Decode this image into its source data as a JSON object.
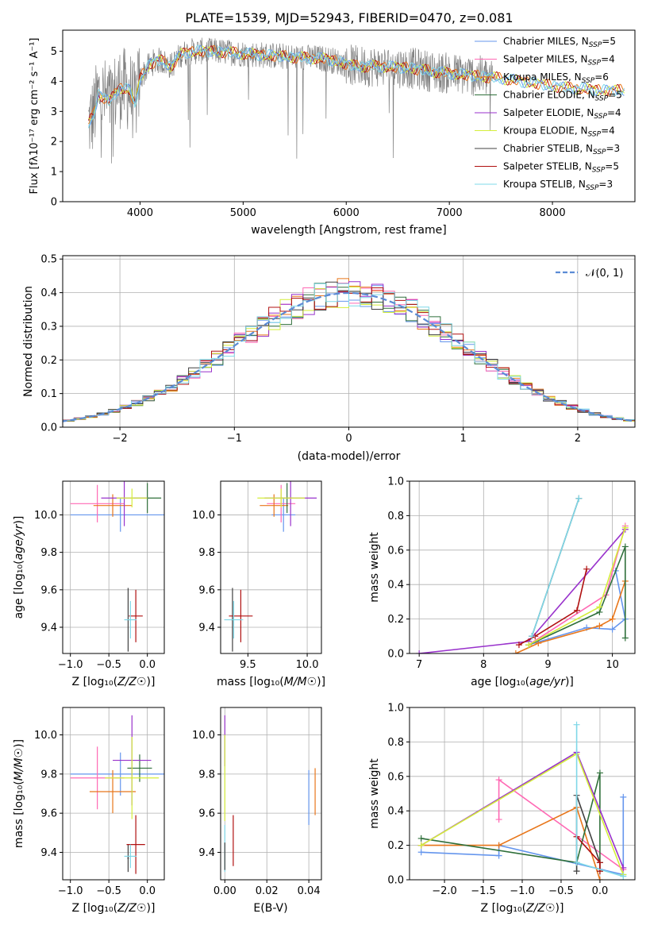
{
  "title": "PLATE=1539, MJD=52943, FIBERID=0470, z=0.081",
  "colors": {
    "chabrier_miles": "#6495ed",
    "salpeter_miles": "#ff69b4",
    "kroupa_miles": "#e8761a",
    "chabrier_elodie": "#2f6f3a",
    "salpeter_elodie": "#9932cc",
    "kroupa_elodie": "#d4ee3a",
    "chabrier_stelib": "#404040",
    "salpeter_stelib": "#b01010",
    "kroupa_stelib": "#7fd8e8",
    "data": "#808080"
  },
  "chart_data": [
    {
      "type": "line",
      "xlabel": "wavelength [Angstrom, rest frame]",
      "ylabel": "Flux [f_λ 10^-17 erg cm^-2 s^-1 A^-1]",
      "xlim": [
        3250,
        8800
      ],
      "ylim": [
        0,
        5.7
      ],
      "xticks": [
        4000,
        5000,
        6000,
        7000,
        8000
      ],
      "yticks": [
        0,
        1,
        2,
        3,
        4,
        5
      ],
      "legend_position": "top-right",
      "legend": [
        {
          "text": "Chabrier MILES, N",
          "sub": "SSP",
          "eq": "=5",
          "color": "#6495ed"
        },
        {
          "text": "Salpeter MILES, N",
          "sub": "SSP",
          "eq": "=4",
          "color": "#ff69b4"
        },
        {
          "text": "Kroupa MILES, N",
          "sub": "SSP",
          "eq": "=6",
          "color": "#e8761a"
        },
        {
          "text": "Chabrier ELODIE, N",
          "sub": "SSP",
          "eq": "=5",
          "color": "#2f6f3a"
        },
        {
          "text": "Salpeter ELODIE, N",
          "sub": "SSP",
          "eq": "=4",
          "color": "#9932cc"
        },
        {
          "text": "Kroupa ELODIE, N",
          "sub": "SSP",
          "eq": "=4",
          "color": "#d4ee3a"
        },
        {
          "text": "Chabrier STELIB, N",
          "sub": "SSP",
          "eq": "=3",
          "color": "#404040"
        },
        {
          "text": "Salpeter STELIB, N",
          "sub": "SSP",
          "eq": "=5",
          "color": "#b01010"
        },
        {
          "text": "Kroupa STELIB, N",
          "sub": "SSP",
          "eq": "=3",
          "color": "#7fd8e8"
        }
      ],
      "spectrum_knots": [
        [
          3500,
          2.6
        ],
        [
          3550,
          2.9
        ],
        [
          3600,
          3.6
        ],
        [
          3700,
          3.3
        ],
        [
          3800,
          3.8
        ],
        [
          3900,
          3.7
        ],
        [
          3950,
          3.2
        ],
        [
          4000,
          4.1
        ],
        [
          4100,
          4.6
        ],
        [
          4200,
          4.7
        ],
        [
          4300,
          4.5
        ],
        [
          4400,
          4.9
        ],
        [
          4500,
          5.0
        ],
        [
          4700,
          5.0
        ],
        [
          4900,
          4.95
        ],
        [
          5100,
          4.9
        ],
        [
          5300,
          4.85
        ],
        [
          5500,
          4.8
        ],
        [
          5800,
          4.75
        ],
        [
          6100,
          4.5
        ],
        [
          6300,
          4.5
        ],
        [
          6600,
          4.45
        ],
        [
          6900,
          4.3
        ],
        [
          7200,
          4.2
        ],
        [
          7500,
          4.1
        ],
        [
          7700,
          4.0
        ],
        [
          7900,
          3.9
        ],
        [
          8100,
          3.8
        ],
        [
          8300,
          3.75
        ],
        [
          8500,
          3.7
        ]
      ]
    },
    {
      "type": "line",
      "xlabel": "(data-model)/error",
      "ylabel": "Normed distribution",
      "xlim": [
        -2.5,
        2.5
      ],
      "ylim": [
        0,
        0.51
      ],
      "xticks": [
        -2,
        -1,
        0,
        1,
        2
      ],
      "yticks": [
        0.0,
        0.1,
        0.2,
        0.3,
        0.4,
        0.5
      ],
      "legend_position": "top-right",
      "legend_label": "𝒩(0, 1)",
      "histogram_bin_width": 0.1
    },
    {
      "type": "scatter",
      "xlabel": "Z [log10(Z/Z☉)]",
      "ylabel": "age [log10(age/yr)]",
      "xlim": [
        -1.1,
        0.22
      ],
      "ylim": [
        9.26,
        10.18
      ],
      "xticks": [
        -1.0,
        -0.5,
        0.0
      ],
      "yticks": [
        9.4,
        9.6,
        9.8,
        10.0
      ],
      "points": [
        {
          "model": "chabrier_miles",
          "x": -0.35,
          "xerr": 0.65,
          "y": 10.0,
          "yerr": 0.09
        },
        {
          "model": "salpeter_miles",
          "x": -0.65,
          "xerr": 0.35,
          "y": 10.06,
          "yerr": 0.1
        },
        {
          "model": "kroupa_miles",
          "x": -0.45,
          "xerr": 0.25,
          "y": 10.05,
          "yerr": 0.06
        },
        {
          "model": "chabrier_elodie",
          "x": 0.0,
          "xerr": 0.18,
          "y": 10.09,
          "yerr": 0.08
        },
        {
          "model": "salpeter_elodie",
          "x": -0.3,
          "xerr": 0.3,
          "y": 10.09,
          "yerr": 0.15
        },
        {
          "model": "kroupa_elodie",
          "x": -0.2,
          "xerr": 0.2,
          "y": 10.09,
          "yerr": 0.05
        },
        {
          "model": "chabrier_stelib",
          "x": -0.25,
          "xerr": 0.01,
          "y": 9.44,
          "yerr": 0.17
        },
        {
          "model": "salpeter_stelib",
          "x": -0.15,
          "xerr": 0.09,
          "y": 9.46,
          "yerr": 0.14
        },
        {
          "model": "kroupa_stelib",
          "x": -0.22,
          "xerr": 0.08,
          "y": 9.44,
          "yerr": 0.1
        }
      ]
    },
    {
      "type": "scatter",
      "xlabel": "mass [log10(M/M☉)]",
      "ylabel": "",
      "xlim": [
        9.27,
        10.12
      ],
      "ylim": [
        9.26,
        10.18
      ],
      "xticks": [
        9.5,
        10.0
      ],
      "yticks": [
        9.4,
        9.6,
        9.8,
        10.0
      ],
      "points": [
        {
          "model": "chabrier_miles",
          "x": 9.8,
          "xerr": 0.1,
          "y": 10.0,
          "yerr": 0.09
        },
        {
          "model": "salpeter_miles",
          "x": 9.78,
          "xerr": 0.12,
          "y": 10.06,
          "yerr": 0.1
        },
        {
          "model": "kroupa_miles",
          "x": 9.72,
          "xerr": 0.12,
          "y": 10.05,
          "yerr": 0.06
        },
        {
          "model": "chabrier_elodie",
          "x": 9.83,
          "xerr": 0.05,
          "y": 10.09,
          "yerr": 0.08
        },
        {
          "model": "salpeter_elodie",
          "x": 9.86,
          "xerr": 0.22,
          "y": 10.09,
          "yerr": 0.15
        },
        {
          "model": "kroupa_elodie",
          "x": 9.78,
          "xerr": 0.2,
          "y": 10.09,
          "yerr": 0.05
        },
        {
          "model": "chabrier_stelib",
          "x": 9.37,
          "xerr": 0.01,
          "y": 9.44,
          "yerr": 0.17
        },
        {
          "model": "salpeter_stelib",
          "x": 9.44,
          "xerr": 0.1,
          "y": 9.46,
          "yerr": 0.14
        },
        {
          "model": "kroupa_stelib",
          "x": 9.38,
          "xerr": 0.08,
          "y": 9.44,
          "yerr": 0.1
        }
      ]
    },
    {
      "type": "line",
      "xlabel": "age [log10(age/yr)]",
      "ylabel": "mass weight",
      "xlim": [
        6.85,
        10.35
      ],
      "ylim": [
        0,
        1.0
      ],
      "xticks": [
        7,
        8,
        9,
        10
      ],
      "yticks": [
        0.0,
        0.2,
        0.4,
        0.6,
        0.8,
        1.0
      ],
      "series": [
        {
          "model": "chabrier_miles",
          "x": [
            8.7,
            9.6,
            10.0,
            10.2,
            10.05
          ],
          "y": [
            0.05,
            0.15,
            0.14,
            0.2,
            0.48
          ]
        },
        {
          "model": "salpeter_miles",
          "x": [
            8.7,
            9.9,
            10.2
          ],
          "y": [
            0.05,
            0.34,
            0.74
          ]
        },
        {
          "model": "kroupa_miles",
          "x": [
            8.5,
            8.85,
            9.8,
            10.0,
            10.2
          ],
          "y": [
            0.0,
            0.06,
            0.16,
            0.2,
            0.42
          ]
        },
        {
          "model": "chabrier_elodie",
          "x": [
            8.7,
            9.8,
            10.2,
            10.2
          ],
          "y": [
            0.05,
            0.24,
            0.62,
            0.09
          ]
        },
        {
          "model": "salpeter_elodie",
          "x": [
            7.0,
            8.7,
            10.2
          ],
          "y": [
            0.0,
            0.07,
            0.72
          ]
        },
        {
          "model": "kroupa_elodie",
          "x": [
            8.7,
            9.8,
            10.2
          ],
          "y": [
            0.05,
            0.27,
            0.73
          ]
        },
        {
          "model": "chabrier_stelib",
          "x": [
            8.75,
            9.48
          ],
          "y": [
            0.1,
            0.9
          ]
        },
        {
          "model": "salpeter_stelib",
          "x": [
            8.55,
            8.8,
            9.45,
            9.6
          ],
          "y": [
            0.05,
            0.1,
            0.25,
            0.49
          ]
        },
        {
          "model": "kroupa_stelib",
          "x": [
            8.75,
            9.48
          ],
          "y": [
            0.1,
            0.9
          ]
        }
      ]
    },
    {
      "type": "scatter",
      "xlabel": "Z [log10(Z/Z☉)]",
      "ylabel": "mass [log10(M/M☉)]",
      "xlim": [
        -1.1,
        0.22
      ],
      "ylim": [
        9.26,
        10.14
      ],
      "xticks": [
        -1.0,
        -0.5,
        0.0
      ],
      "yticks": [
        9.4,
        9.6,
        9.8,
        10.0
      ],
      "points": [
        {
          "model": "chabrier_miles",
          "x": -0.35,
          "xerr": 0.65,
          "y": 9.8,
          "yerr": 0.11
        },
        {
          "model": "salpeter_miles",
          "x": -0.65,
          "xerr": 0.35,
          "y": 9.78,
          "yerr": 0.16
        },
        {
          "model": "kroupa_miles",
          "x": -0.45,
          "xerr": 0.3,
          "y": 9.71,
          "yerr": 0.11
        },
        {
          "model": "chabrier_elodie",
          "x": -0.1,
          "xerr": 0.16,
          "y": 9.83,
          "yerr": 0.07
        },
        {
          "model": "salpeter_elodie",
          "x": -0.2,
          "xerr": 0.25,
          "y": 9.87,
          "yerr": 0.23
        },
        {
          "model": "kroupa_elodie",
          "x": -0.2,
          "xerr": 0.35,
          "y": 9.78,
          "yerr": 0.21
        },
        {
          "model": "chabrier_stelib",
          "x": -0.25,
          "xerr": 0.01,
          "y": 9.37,
          "yerr": 0.07
        },
        {
          "model": "salpeter_stelib",
          "x": -0.15,
          "xerr": 0.12,
          "y": 9.44,
          "yerr": 0.15
        },
        {
          "model": "kroupa_stelib",
          "x": -0.22,
          "xerr": 0.08,
          "y": 9.38,
          "yerr": 0.06
        }
      ]
    },
    {
      "type": "scatter",
      "xlabel": "E(B-V)",
      "ylabel": "",
      "xlim": [
        -0.002,
        0.046
      ],
      "ylim": [
        9.26,
        10.14
      ],
      "xticks": [
        0.0,
        0.02,
        0.04
      ],
      "yticks": [
        9.4,
        9.6,
        9.8,
        10.0
      ],
      "points": [
        {
          "model": "chabrier_miles",
          "x": 0.04,
          "y": 9.68,
          "yerr": 0.14
        },
        {
          "model": "kroupa_miles",
          "x": 0.043,
          "y": 9.71,
          "yerr": 0.12
        },
        {
          "model": "salpeter_elodie",
          "x": 0.0,
          "y": 9.97,
          "yerr": 0.13
        },
        {
          "model": "kroupa_elodie",
          "x": 0.0,
          "y": 9.78,
          "yerr": 0.22
        },
        {
          "model": "salpeter_stelib",
          "x": 0.004,
          "y": 9.46,
          "yerr": 0.13
        },
        {
          "model": "kroupa_stelib",
          "x": 0.0,
          "y": 9.42,
          "yerr": 0.12
        },
        {
          "model": "chabrier_stelib",
          "x": 0.0,
          "y": 9.38,
          "yerr": 0.07
        }
      ]
    },
    {
      "type": "line",
      "xlabel": "Z [log10(Z/Z☉)]",
      "ylabel": "mass weight",
      "xlim": [
        -2.45,
        0.45
      ],
      "ylim": [
        0,
        1.0
      ],
      "xticks": [
        -2.0,
        -1.5,
        -1.0,
        -0.5,
        0.0
      ],
      "yticks": [
        0.0,
        0.2,
        0.4,
        0.6,
        0.8,
        1.0
      ],
      "series": [
        {
          "model": "chabrier_miles",
          "x": [
            -2.3,
            -1.3,
            -1.3,
            0.3,
            0.3
          ],
          "y": [
            0.16,
            0.14,
            0.2,
            0.03,
            0.48
          ]
        },
        {
          "model": "salpeter_miles",
          "x": [
            -1.3,
            -1.3,
            0.3
          ],
          "y": [
            0.35,
            0.58,
            0.06
          ]
        },
        {
          "model": "kroupa_miles",
          "x": [
            -2.3,
            -1.3,
            -0.3,
            0.0
          ],
          "y": [
            0.2,
            0.2,
            0.42,
            0.0
          ]
        },
        {
          "model": "chabrier_elodie",
          "x": [
            -2.3,
            -0.3,
            0.0,
            0.0
          ],
          "y": [
            0.24,
            0.1,
            0.62,
            0.05
          ]
        },
        {
          "model": "salpeter_elodie",
          "x": [
            -2.3,
            -0.3,
            0.3
          ],
          "y": [
            0.2,
            0.74,
            0.07
          ]
        },
        {
          "model": "kroupa_elodie",
          "x": [
            -2.3,
            -0.3,
            0.3
          ],
          "y": [
            0.2,
            0.73,
            0.03
          ]
        },
        {
          "model": "chabrier_stelib",
          "x": [
            -0.3,
            -0.3,
            0.0
          ],
          "y": [
            0.05,
            0.49,
            0.1
          ]
        },
        {
          "model": "salpeter_stelib",
          "x": [
            -0.3,
            0.0,
            0.0
          ],
          "y": [
            0.25,
            0.1,
            0.05
          ]
        },
        {
          "model": "kroupa_stelib",
          "x": [
            -0.3,
            -0.3,
            0.3
          ],
          "y": [
            0.9,
            0.1,
            0.02
          ]
        }
      ]
    }
  ]
}
